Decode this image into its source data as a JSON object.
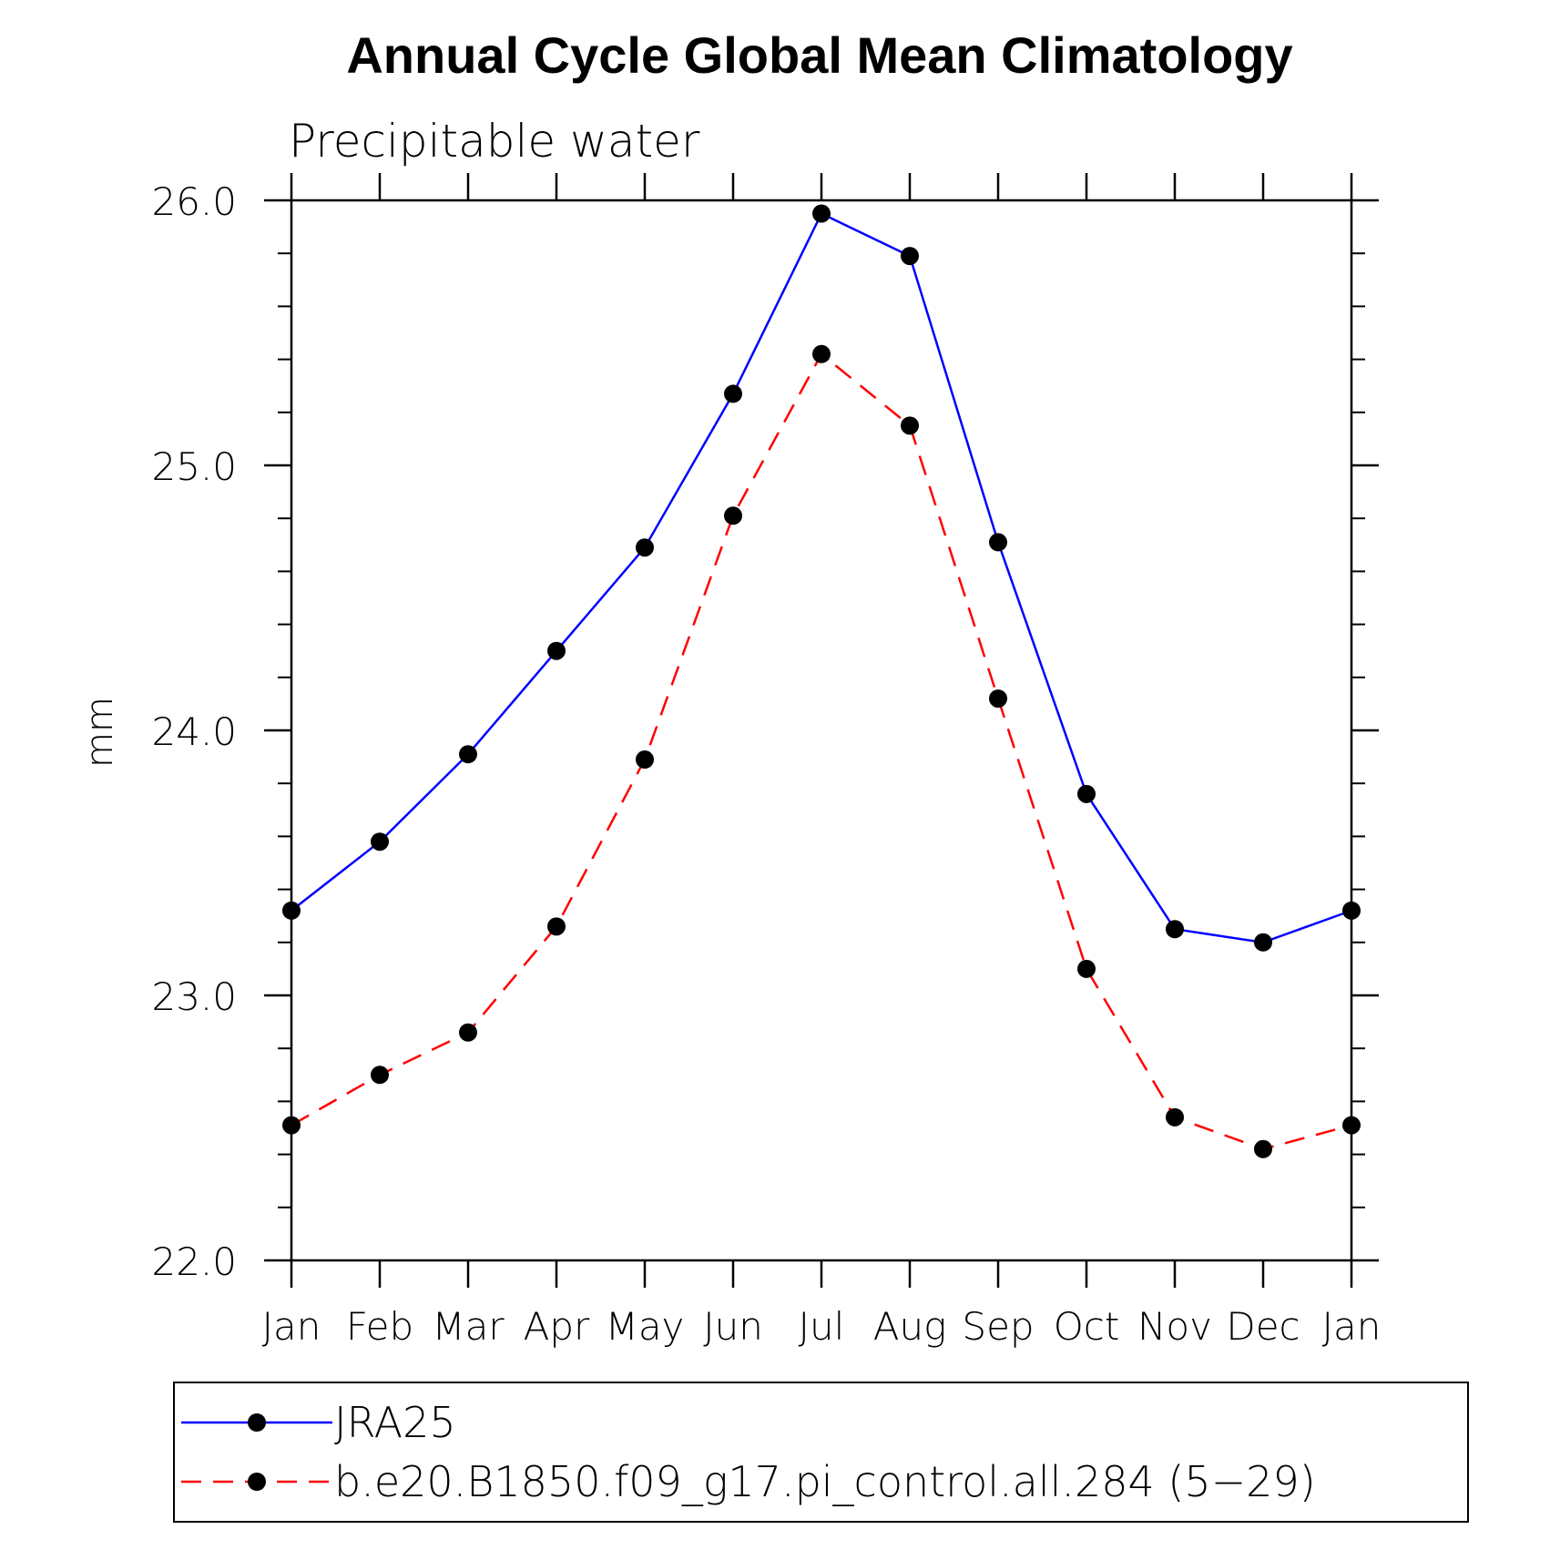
{
  "chart_data": {
    "type": "line",
    "title": "Annual Cycle Global Mean Climatology",
    "subtitle": "Precipitable water",
    "ylabel": "mm",
    "xlabel": "",
    "categories": [
      "Jan",
      "Feb",
      "Mar",
      "Apr",
      "May",
      "Jun",
      "Jul",
      "Aug",
      "Sep",
      "Oct",
      "Nov",
      "Dec",
      "Jan"
    ],
    "ylim": [
      22.0,
      26.0
    ],
    "yticks": [
      "22.0",
      "23.0",
      "24.0",
      "25.0",
      "26.0"
    ],
    "legend_position": "bottom",
    "series": [
      {
        "name": "JRA25",
        "color": "#0000ff",
        "dash": "solid",
        "values": [
          23.32,
          23.58,
          23.91,
          24.3,
          24.69,
          25.27,
          25.95,
          25.79,
          24.71,
          23.76,
          23.25,
          23.2,
          23.32
        ]
      },
      {
        "name": "b.e20.B1850.f09_g17.pi_control.all.284 (5−29)",
        "color": "#ff0000",
        "dash": "dashed",
        "values": [
          22.51,
          22.7,
          22.86,
          23.26,
          23.89,
          24.81,
          25.42,
          25.15,
          24.12,
          23.1,
          22.54,
          22.42,
          22.51
        ]
      }
    ]
  }
}
